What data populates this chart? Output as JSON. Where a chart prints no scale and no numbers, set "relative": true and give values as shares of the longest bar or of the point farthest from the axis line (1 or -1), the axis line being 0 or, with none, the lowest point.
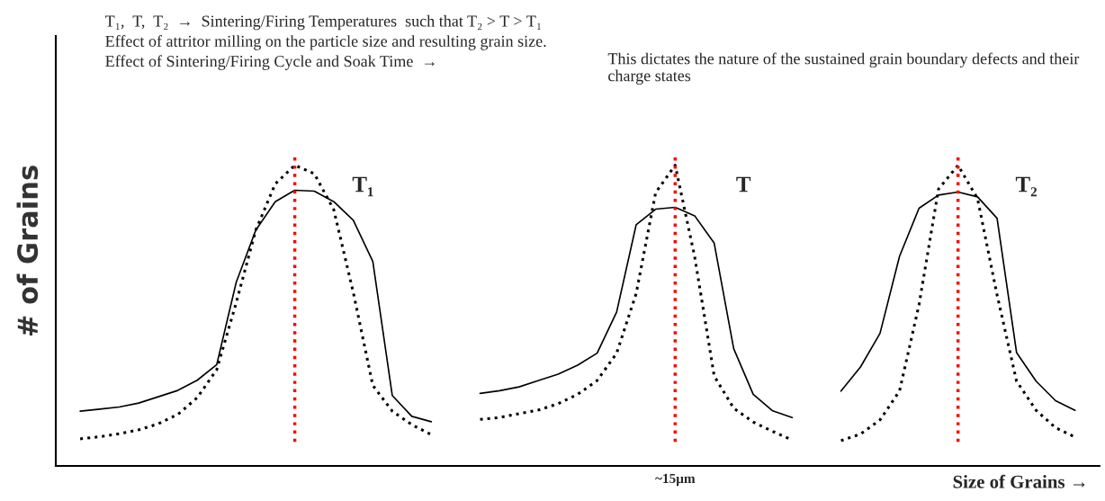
{
  "chart_data": [
    {
      "type": "line",
      "relative": true,
      "tick_labels": false,
      "marker": "none",
      "ylabel": "# of Grains",
      "categories": [
        null,
        null,
        null,
        null,
        null,
        null,
        null,
        null,
        null,
        null,
        null,
        null,
        null,
        null,
        null,
        null,
        null,
        null,
        null
      ],
      "series": [
        {
          "color": "#000000",
          "line_style": "solid",
          "values": [
            0.182,
            0.189,
            0.196,
            0.209,
            0.23,
            0.251,
            0.285,
            0.337,
            0.611,
            0.784,
            0.879,
            0.917,
            0.914,
            0.879,
            0.817,
            0.68,
            0.234,
            0.165,
            0.147
          ]
        },
        {
          "color": "#000000",
          "line_style": "dotted",
          "values": [
            0.09,
            0.097,
            0.107,
            0.12,
            0.14,
            0.171,
            0.227,
            0.32,
            0.543,
            0.784,
            0.938,
            1,
            0.972,
            0.852,
            0.577,
            0.268,
            0.182,
            0.137,
            0.104
          ]
        }
      ],
      "annotations": [
        "T₁,  T,  T₂  →  Sintering/Firing Temperatures  such that T₂ > T > T₁",
        "Effect of attritor milling on the particle size and resulting grain size.",
        "Effect of Sintering/Firing Cycle and Soak Time  →  This dictates the nature of the sustained grain boundary defects and their charge states",
        "T₁"
      ]
    },
    {
      "type": "line",
      "relative": true,
      "tick_labels": false,
      "marker": "none",
      "categories": [
        null,
        null,
        null,
        null,
        null,
        null,
        null,
        null,
        null,
        null,
        null,
        null,
        null,
        null,
        null,
        null,
        null
      ],
      "series": [
        {
          "color": "#000000",
          "line_style": "solid",
          "values": [
            0.241,
            0.25,
            0.263,
            0.284,
            0.305,
            0.335,
            0.375,
            0.512,
            0.802,
            0.854,
            0.86,
            0.832,
            0.741,
            0.39,
            0.238,
            0.183,
            0.161
          ]
        },
        {
          "color": "#000000",
          "line_style": "dotted",
          "values": [
            0.155,
            0.161,
            0.174,
            0.186,
            0.207,
            0.238,
            0.284,
            0.375,
            0.573,
            0.909,
            1,
            0.696,
            0.299,
            0.192,
            0.146,
            0.115,
            0.086
          ]
        }
      ],
      "annotations": [
        "T",
        "~15μm"
      ]
    },
    {
      "type": "line",
      "relative": true,
      "tick_labels": false,
      "marker": "none",
      "xlabel": "Size of Grains →",
      "categories": [
        null,
        null,
        null,
        null,
        null,
        null,
        null,
        null,
        null,
        null,
        null,
        null,
        null
      ],
      "series": [
        {
          "color": "#000000",
          "line_style": "solid",
          "values": [
            0.249,
            0.329,
            0.441,
            0.697,
            0.857,
            0.901,
            0.911,
            0.895,
            0.824,
            0.377,
            0.282,
            0.217,
            0.185
          ]
        },
        {
          "color": "#000000",
          "line_style": "dotted",
          "values": [
            0.084,
            0.106,
            0.153,
            0.249,
            0.536,
            0.921,
            1,
            0.889,
            0.569,
            0.282,
            0.185,
            0.127,
            0.096
          ]
        }
      ],
      "annotations": [
        "T₂"
      ]
    }
  ]
}
